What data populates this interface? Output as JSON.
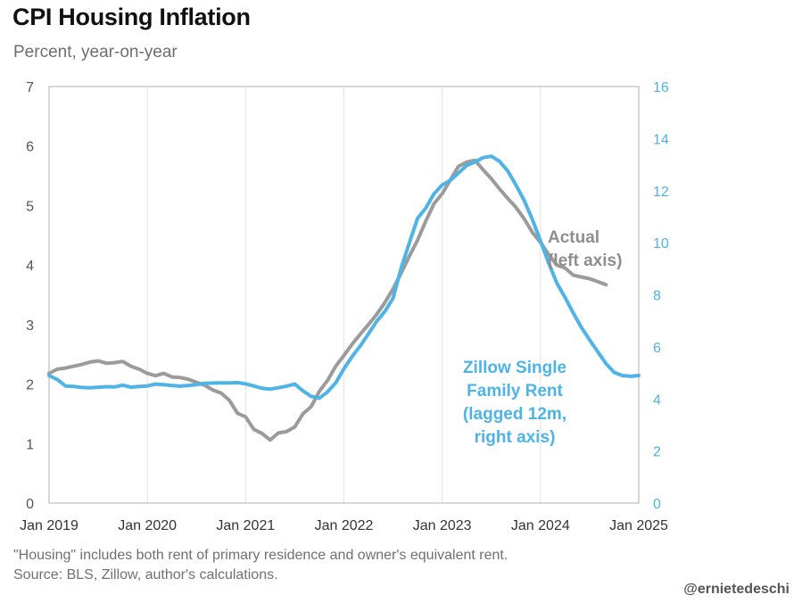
{
  "chart_data": {
    "type": "line",
    "title": "CPI Housing Inflation",
    "subtitle": "Percent, year-on-year",
    "x_ticks": [
      "Jan 2019",
      "Jan 2020",
      "Jan 2021",
      "Jan 2022",
      "Jan 2023",
      "Jan 2024",
      "Jan 2025"
    ],
    "x_range": [
      "2019-01",
      "2025-01"
    ],
    "y_left": {
      "range": [
        0,
        7
      ],
      "ticks": [
        "0",
        "1",
        "2",
        "3",
        "4",
        "5",
        "6",
        "7"
      ],
      "color": "#555555"
    },
    "y_right": {
      "range": [
        0,
        16
      ],
      "ticks": [
        "0",
        "2",
        "4",
        "6",
        "8",
        "10",
        "12",
        "14",
        "16"
      ],
      "color": "#4eb3e6"
    },
    "grid": "vertical-at-x-ticks",
    "series": [
      {
        "name": "Actual",
        "annotation": [
          "Actual",
          "(left axis)"
        ],
        "axis": "left",
        "color": "#9b9b9b",
        "points": [
          [
            "2019-01",
            2.18
          ],
          [
            "2019-02",
            2.25
          ],
          [
            "2019-03",
            2.27
          ],
          [
            "2019-04",
            2.3
          ],
          [
            "2019-05",
            2.33
          ],
          [
            "2019-06",
            2.37
          ],
          [
            "2019-07",
            2.39
          ],
          [
            "2019-08",
            2.35
          ],
          [
            "2019-09",
            2.36
          ],
          [
            "2019-10",
            2.38
          ],
          [
            "2019-11",
            2.3
          ],
          [
            "2019-12",
            2.25
          ],
          [
            "2020-01",
            2.18
          ],
          [
            "2020-02",
            2.14
          ],
          [
            "2020-03",
            2.18
          ],
          [
            "2020-04",
            2.12
          ],
          [
            "2020-05",
            2.11
          ],
          [
            "2020-06",
            2.08
          ],
          [
            "2020-07",
            2.03
          ],
          [
            "2020-08",
            1.98
          ],
          [
            "2020-09",
            1.9
          ],
          [
            "2020-10",
            1.85
          ],
          [
            "2020-11",
            1.73
          ],
          [
            "2020-12",
            1.51
          ],
          [
            "2021-01",
            1.45
          ],
          [
            "2021-02",
            1.24
          ],
          [
            "2021-03",
            1.17
          ],
          [
            "2021-04",
            1.06
          ],
          [
            "2021-05",
            1.18
          ],
          [
            "2021-06",
            1.2
          ],
          [
            "2021-07",
            1.28
          ],
          [
            "2021-08",
            1.5
          ],
          [
            "2021-09",
            1.62
          ],
          [
            "2021-10",
            1.88
          ],
          [
            "2021-11",
            2.06
          ],
          [
            "2021-12",
            2.3
          ],
          [
            "2022-01",
            2.48
          ],
          [
            "2022-02",
            2.67
          ],
          [
            "2022-03",
            2.84
          ],
          [
            "2022-04",
            3.0
          ],
          [
            "2022-05",
            3.17
          ],
          [
            "2022-06",
            3.37
          ],
          [
            "2022-07",
            3.6
          ],
          [
            "2022-08",
            3.87
          ],
          [
            "2022-09",
            4.15
          ],
          [
            "2022-10",
            4.42
          ],
          [
            "2022-11",
            4.74
          ],
          [
            "2022-12",
            5.03
          ],
          [
            "2023-01",
            5.2
          ],
          [
            "2023-02",
            5.43
          ],
          [
            "2023-03",
            5.66
          ],
          [
            "2023-04",
            5.73
          ],
          [
            "2023-05",
            5.76
          ],
          [
            "2023-06",
            5.6
          ],
          [
            "2023-07",
            5.45
          ],
          [
            "2023-08",
            5.28
          ],
          [
            "2023-09",
            5.12
          ],
          [
            "2023-10",
            4.97
          ],
          [
            "2023-11",
            4.78
          ],
          [
            "2023-12",
            4.55
          ],
          [
            "2024-01",
            4.38
          ],
          [
            "2024-02",
            4.18
          ],
          [
            "2024-03",
            4.0
          ],
          [
            "2024-04",
            3.95
          ],
          [
            "2024-05",
            3.83
          ],
          [
            "2024-06",
            3.8
          ],
          [
            "2024-07",
            3.77
          ],
          [
            "2024-08",
            3.72
          ],
          [
            "2024-09",
            3.67
          ]
        ]
      },
      {
        "name": "Zillow Single Family Rent",
        "annotation": [
          "Zillow Single",
          "Family Rent",
          "(lagged 12m,",
          "right axis)"
        ],
        "axis": "right",
        "color": "#4eb3e6",
        "points": [
          [
            "2019-01",
            4.9
          ],
          [
            "2019-02",
            4.75
          ],
          [
            "2019-03",
            4.5
          ],
          [
            "2019-04",
            4.48
          ],
          [
            "2019-05",
            4.44
          ],
          [
            "2019-06",
            4.43
          ],
          [
            "2019-07",
            4.45
          ],
          [
            "2019-08",
            4.47
          ],
          [
            "2019-09",
            4.46
          ],
          [
            "2019-10",
            4.53
          ],
          [
            "2019-11",
            4.45
          ],
          [
            "2019-12",
            4.48
          ],
          [
            "2020-01",
            4.5
          ],
          [
            "2020-02",
            4.57
          ],
          [
            "2020-03",
            4.55
          ],
          [
            "2020-04",
            4.52
          ],
          [
            "2020-05",
            4.49
          ],
          [
            "2020-06",
            4.52
          ],
          [
            "2020-07",
            4.55
          ],
          [
            "2020-08",
            4.6
          ],
          [
            "2020-09",
            4.61
          ],
          [
            "2020-10",
            4.62
          ],
          [
            "2020-11",
            4.62
          ],
          [
            "2020-12",
            4.63
          ],
          [
            "2021-01",
            4.58
          ],
          [
            "2021-02",
            4.5
          ],
          [
            "2021-03",
            4.41
          ],
          [
            "2021-04",
            4.38
          ],
          [
            "2021-05",
            4.43
          ],
          [
            "2021-06",
            4.49
          ],
          [
            "2021-07",
            4.57
          ],
          [
            "2021-08",
            4.31
          ],
          [
            "2021-09",
            4.1
          ],
          [
            "2021-10",
            4.03
          ],
          [
            "2021-11",
            4.27
          ],
          [
            "2021-12",
            4.62
          ],
          [
            "2022-01",
            5.16
          ],
          [
            "2022-02",
            5.63
          ],
          [
            "2022-03",
            6.04
          ],
          [
            "2022-04",
            6.5
          ],
          [
            "2022-05",
            6.98
          ],
          [
            "2022-06",
            7.36
          ],
          [
            "2022-07",
            7.87
          ],
          [
            "2022-08",
            9.04
          ],
          [
            "2022-09",
            10.0
          ],
          [
            "2022-10",
            10.94
          ],
          [
            "2022-11",
            11.33
          ],
          [
            "2022-12",
            11.88
          ],
          [
            "2023-01",
            12.22
          ],
          [
            "2023-02",
            12.4
          ],
          [
            "2023-03",
            12.68
          ],
          [
            "2023-04",
            12.97
          ],
          [
            "2023-05",
            13.1
          ],
          [
            "2023-06",
            13.27
          ],
          [
            "2023-07",
            13.32
          ],
          [
            "2023-08",
            13.13
          ],
          [
            "2023-09",
            12.76
          ],
          [
            "2023-10",
            12.22
          ],
          [
            "2023-11",
            11.63
          ],
          [
            "2023-12",
            10.9
          ],
          [
            "2024-01",
            10.08
          ],
          [
            "2024-02",
            9.22
          ],
          [
            "2024-03",
            8.45
          ],
          [
            "2024-04",
            7.9
          ],
          [
            "2024-05",
            7.3
          ],
          [
            "2024-06",
            6.75
          ],
          [
            "2024-07",
            6.27
          ],
          [
            "2024-08",
            5.81
          ],
          [
            "2024-09",
            5.36
          ],
          [
            "2024-10",
            5.02
          ],
          [
            "2024-11",
            4.9
          ],
          [
            "2024-12",
            4.87
          ],
          [
            "2025-01",
            4.9
          ]
        ]
      }
    ]
  },
  "footnotes": {
    "note": "\"Housing\" includes both rent of primary residence and owner's equivalent rent.",
    "source": "Source: BLS, Zillow, author's calculations."
  },
  "handle": "@ernietedeschi"
}
